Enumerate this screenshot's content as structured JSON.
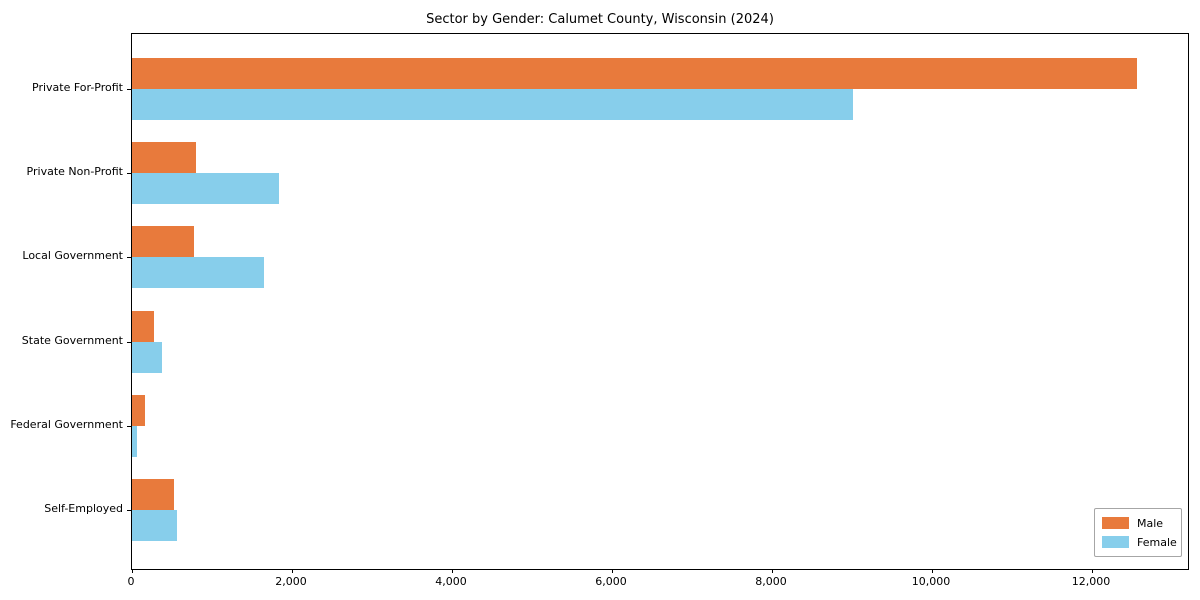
{
  "title": "Sector by Gender: Calumet County, Wisconsin (2024)",
  "chart_data": {
    "type": "bar",
    "orientation": "horizontal",
    "title": "Sector by Gender: Calumet County, Wisconsin (2024)",
    "categories": [
      "Private For-Profit",
      "Private Non-Profit",
      "Local Government",
      "State Government",
      "Federal Government",
      "Self-Employed"
    ],
    "series": [
      {
        "name": "Male",
        "color": "#E87A3C",
        "values": [
          12560,
          800,
          770,
          275,
          160,
          525
        ]
      },
      {
        "name": "Female",
        "color": "#87CEEB",
        "values": [
          9010,
          1840,
          1650,
          375,
          65,
          560
        ]
      }
    ],
    "xlabel": "",
    "ylabel": "",
    "xlim": [
      0,
      13200
    ],
    "xticks": [
      0,
      2000,
      4000,
      6000,
      8000,
      10000,
      12000
    ],
    "xtick_labels": [
      "0",
      "2,000",
      "4,000",
      "6,000",
      "8,000",
      "10,000",
      "12,000"
    ],
    "grid": false,
    "legend_position": "lower right",
    "axis_color": "#000000",
    "background_color": "#ffffff"
  }
}
